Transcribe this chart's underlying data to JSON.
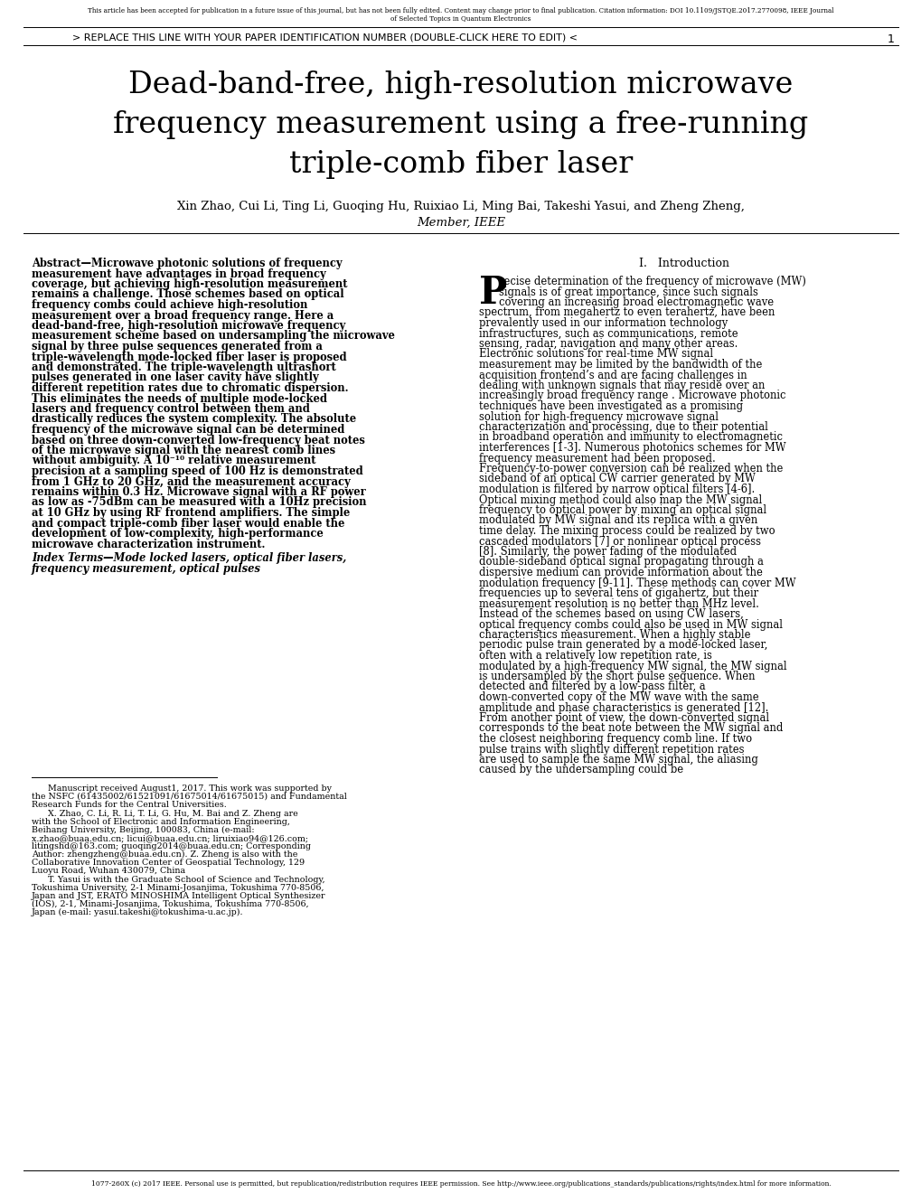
{
  "bg_color": "#ffffff",
  "header_line1": "This article has been accepted for publication in a future issue of this journal, but has not been fully edited. Content may change prior to final publication. Citation information: DOI 10.1109/JSTQE.2017.2770098, IEEE Journal",
  "header_line2": "of Selected Topics in Quantum Electronics",
  "header_bar": "> REPLACE THIS LINE WITH YOUR PAPER IDENTIFICATION NUMBER (DOUBLE-CLICK HERE TO EDIT) <",
  "header_page": "1",
  "title_line1": "Dead-band-free, high-resolution microwave",
  "title_line2": "frequency measurement using a free-running",
  "title_line3": "triple-comb fiber laser",
  "authors": "Xin Zhao, Cui Li, Ting Li, Guoqing Hu, Ruixiao Li, Ming Bai, Takeshi Yasui, and Zheng Zheng,",
  "member": "Member, IEEE",
  "abstract_label": "Abstract",
  "abstract_body": "Microwave photonic solutions of frequency measurement have advantages in broad frequency coverage, but achieving high-resolution measurement remains a challenge. Those schemes based on optical frequency combs could achieve high-resolution measurement over a broad frequency range. Here a dead-band-free, high-resolution microwave frequency measurement scheme based on undersampling the microwave signal by three pulse sequences generated from a triple-wavelength mode-locked fiber laser is proposed and demonstrated. The triple-wavelength ultrashort pulses generated in one laser cavity have slightly different repetition rates due to chromatic dispersion. This eliminates the needs of multiple mode-locked lasers and frequency control between them and drastically reduces the system complexity. The absolute frequency of the microwave signal can be determined based on three down-converted low-frequency beat notes of the microwave signal with the nearest comb lines without ambiguity. A 10⁻¹⁰ relative measurement precision at a sampling speed of 100 Hz is demonstrated from 1 GHz to 20 GHz, and the measurement accuracy remains within 0.3 Hz. Microwave signal with a RF power as low as -75dBm can be measured with a 10Hz precision at 10 GHz by using RF frontend amplifiers. The simple and compact triple-comb fiber laser would enable the development of low-complexity, high-performance microwave characterization instrument.",
  "index_label": "Index Terms",
  "index_body": "Mode locked lasers, optical fiber lasers, frequency measurement, optical pulses",
  "footnote1": "Manuscript received August1, 2017. This work was supported by the NSFC (61435002/61521091/61675014/61675015) and Fundamental Research Funds for the Central Universities.",
  "footnote2": "X. Zhao, C. Li, R. Li, T. Li, G. Hu, M. Bai and Z. Zheng are with the School of Electronic and Information Engineering, Beihang University, Beijing, 100083,  China  (e-mail:  x.zhao@buaa.edu.cn;  licui@buaa.edu.cn; liruixiao94@126.com;  litingshd@163.com;  guoqing2014@buaa.edu.cn; Corresponding Author: zhengzheng@buaa.edu.cn). Z. Zheng is also with the Collaborative Innovation Center of Geospatial Technology, 129 Luoyu Road, Wuhan 430079, China",
  "footnote3": "T. Yasui is with the Graduate School of Science and Technology, Tokushima University, 2-1 Minami-Josanjima, Tokushima 770-8506, Japan and JST, ERATO MINOSHIMA Intelligent Optical Synthesizer (IOS), 2-1, Minami-Josanjima, Tokushima, Tokushima 770-8506, Japan (e-mail: yasui.takeshi@tokushima-u.ac.jp).",
  "intro_heading": "I.   Introduction",
  "intro_drop": "P",
  "intro_body": "recise determination of the frequency of microwave (MW) signals is of great importance, since such signals covering an increasing broad electromagnetic wave spectrum, from megahertz to even terahertz, have been prevalently used in our information technology infrastructures, such as communications, remote sensing, radar, navigation and many other areas. Electronic solutions for real-time MW signal measurement may be limited by the bandwidth of the acquisition frontend’s and are facing challenges in dealing with unknown signals that may reside over an increasingly broad frequency range . Microwave photonic techniques have been investigated as a promising solution for high-frequency microwave signal characterization and processing, due to their potential in broadband operation and immunity to electromagnetic interferences [1-3]. Numerous photonics schemes for MW frequency measurement had been proposed. Frequency-to-power conversion can be realized when the sideband of an optical CW carrier generated by MW modulation is filtered by narrow optical filters [4-6]. Optical mixing method could also map the MW signal frequency to optical power by mixing an optical signal modulated by MW signal and its replica with a given time delay. The mixing process could be realized by two cascaded modulators [7] or nonlinear optical process [8]. Similarly, the power fading of the modulated double-sideband optical signal propagating through a dispersive medium can provide information about the modulation frequency [9-11]. These methods can cover MW frequencies up to several tens of gigahertz, but their measurement resolution is no better than MHz level. Instead of the schemes based on using CW lasers, optical frequency combs could also be used in MW signal characteristics measurement. When a highly stable periodic pulse train generated by a mode-locked laser, often with a relatively low repetition rate, is modulated by a high-frequency MW signal, the MW signal is undersampled by the short pulse sequence. When detected and filtered by a low-pass filter, a down-converted copy of the MW wave with the same amplitude and phase characteristics is generated [12]. From another point of view, the down-converted signal corresponds to the beat note between the MW signal and the closest neighboring frequency comb line. If two pulse trains with slightly different repetition rates are used to sample the same MW signal, the aliasing caused by the undersampling could be",
  "footer_text": "1077-260X (c) 2017 IEEE. Personal use is permitted, but republication/redistribution requires IEEE permission. See http://www.ieee.org/publications_standards/publications/rights/index.html for more information."
}
